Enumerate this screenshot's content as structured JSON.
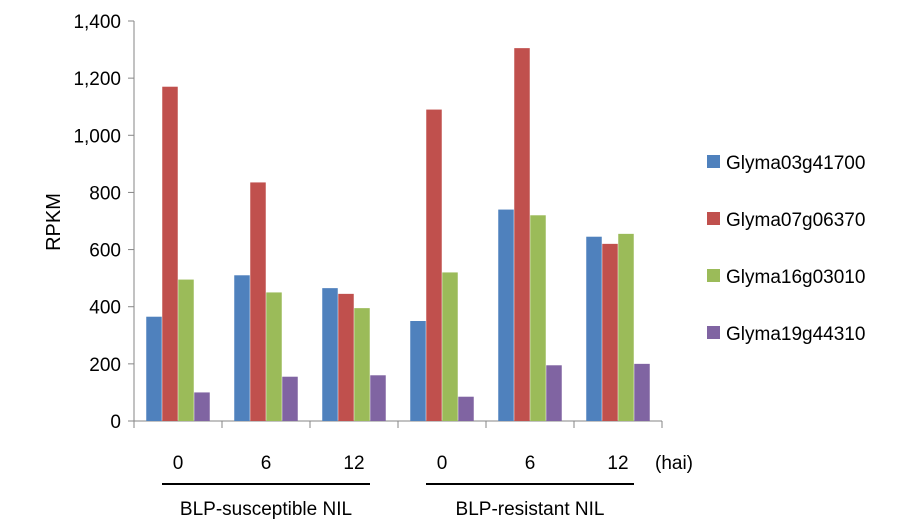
{
  "chart_data": {
    "type": "bar",
    "title": "",
    "ylabel": "RPKM",
    "ylim": [
      0,
      1400
    ],
    "yticks": [
      0,
      200,
      400,
      600,
      800,
      1000,
      1200,
      1400
    ],
    "ytick_labels": [
      "0",
      "200",
      "400",
      "600",
      "800",
      "1,000",
      "1,200",
      "1,400"
    ],
    "grid": false,
    "legend_position": "right",
    "categories": [
      "0",
      "6",
      "12",
      "0",
      "6",
      "12"
    ],
    "x_unit_label": "(hai)",
    "groups": [
      {
        "label": "BLP-susceptible NIL",
        "categories": [
          0,
          1,
          2
        ]
      },
      {
        "label": "BLP-resistant NIL",
        "categories": [
          3,
          4,
          5
        ]
      }
    ],
    "series": [
      {
        "name": "Glyma03g41700",
        "color": "#4f81bd",
        "values": [
          365,
          510,
          465,
          350,
          740,
          645
        ]
      },
      {
        "name": "Glyma07g06370",
        "color": "#c0504d",
        "values": [
          1170,
          835,
          445,
          1090,
          1305,
          620
        ]
      },
      {
        "name": "Glyma16g03010",
        "color": "#9bbb59",
        "values": [
          495,
          450,
          395,
          520,
          720,
          655
        ]
      },
      {
        "name": "Glyma19g44310",
        "color": "#8064a2",
        "values": [
          100,
          155,
          160,
          85,
          195,
          200
        ]
      }
    ]
  }
}
